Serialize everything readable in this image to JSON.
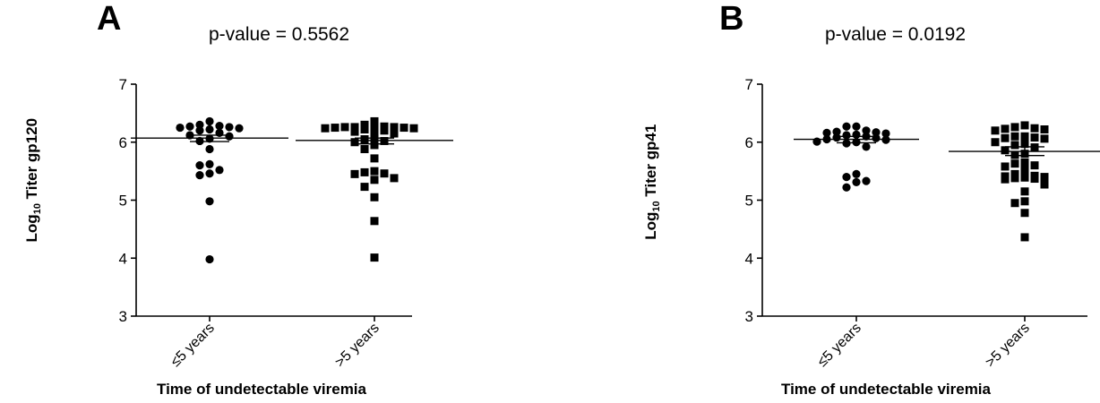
{
  "figure": {
    "panels": [
      {
        "letter": "A",
        "pvalue_text": "p-value = 0.5562",
        "ylabel_prefix": "Log",
        "ylabel_sub": "10",
        "ylabel_suffix": " Titer gp120",
        "xlabel": "Time of undetectable viremia"
      },
      {
        "letter": "B",
        "pvalue_text": "p-value = 0.0192",
        "ylabel_prefix": "Log",
        "ylabel_sub": "10",
        "ylabel_suffix": " Titer gp41",
        "xlabel": "Time of undetectable viremia"
      }
    ]
  },
  "chart_data": [
    {
      "type": "scatter",
      "title": "p-value = 0.5562",
      "xlabel": "Time of undetectable viremia",
      "ylabel": "Log10 Titer gp120",
      "ylim": [
        3,
        7
      ],
      "yticks": [
        3,
        4,
        5,
        6,
        7
      ],
      "categories": [
        "≤5 years",
        ">5 years"
      ],
      "grid": false,
      "series": [
        {
          "category": "≤5 years",
          "marker": "circle",
          "values": [
            6.36,
            6.3,
            6.28,
            6.27,
            6.26,
            6.25,
            6.24,
            6.22,
            6.2,
            6.16,
            6.12,
            6.1,
            6.06,
            6.02,
            5.88,
            5.62,
            5.6,
            5.52,
            5.46,
            5.43,
            4.98,
            3.98
          ],
          "mean": 6.07,
          "sem_upper": 6.12,
          "sem_lower": 6.01
        },
        {
          "category": ">5 years",
          "marker": "square",
          "values": [
            6.36,
            6.3,
            6.27,
            6.26,
            6.26,
            6.26,
            6.25,
            6.25,
            6.24,
            6.24,
            6.23,
            6.22,
            6.2,
            6.18,
            6.15,
            6.1,
            6.05,
            6.02,
            6.0,
            5.95,
            5.88,
            5.72,
            5.5,
            5.48,
            5.46,
            5.45,
            5.38,
            5.35,
            5.23,
            5.05,
            4.64,
            4.01
          ],
          "mean": 6.03,
          "sem_upper": 6.07,
          "sem_lower": 5.97
        }
      ]
    },
    {
      "type": "scatter",
      "title": "p-value = 0.0192",
      "xlabel": "Time of undetectable viremia",
      "ylabel": "Log10 Titer gp41",
      "ylim": [
        3,
        7
      ],
      "yticks": [
        3,
        4,
        5,
        6,
        7
      ],
      "categories": [
        "≤5 years",
        ">5 years"
      ],
      "grid": false,
      "series": [
        {
          "category": "≤5 years",
          "marker": "circle",
          "values": [
            6.27,
            6.27,
            6.2,
            6.18,
            6.17,
            6.16,
            6.15,
            6.13,
            6.12,
            6.1,
            6.08,
            6.07,
            6.05,
            6.04,
            6.01,
            6.0,
            5.98,
            5.92,
            5.45,
            5.4,
            5.33,
            5.31,
            5.22
          ],
          "mean": 6.05,
          "sem_upper": 6.1,
          "sem_lower": 5.99
        },
        {
          "category": ">5 years",
          "marker": "square",
          "values": [
            6.29,
            6.26,
            6.24,
            6.23,
            6.22,
            6.2,
            6.1,
            6.1,
            6.08,
            6.07,
            6.06,
            6.0,
            5.97,
            5.95,
            5.91,
            5.86,
            5.8,
            5.78,
            5.65,
            5.63,
            5.6,
            5.58,
            5.52,
            5.45,
            5.42,
            5.41,
            5.4,
            5.39,
            5.38,
            5.37,
            5.36,
            5.27,
            5.15,
            4.98,
            4.95,
            4.78,
            4.36
          ],
          "mean": 5.84,
          "sem_upper": 5.92,
          "sem_lower": 5.77
        }
      ]
    }
  ]
}
